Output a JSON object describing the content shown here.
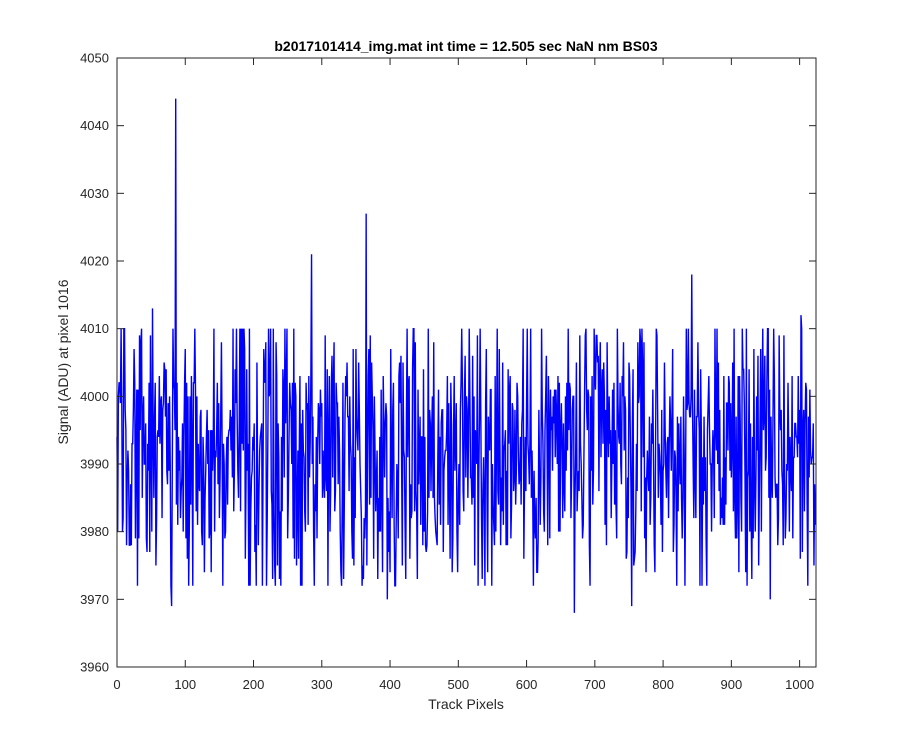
{
  "chart_data": {
    "type": "line",
    "title": "b2017101414_img.mat int time = 12.505 sec  NaN nm BS03",
    "xlabel": "Track Pixels",
    "ylabel": "Signal (ADU) at pixel 1016",
    "xlim": [
      0,
      1024
    ],
    "ylim": [
      3960,
      4050
    ],
    "xticks": [
      0,
      100,
      200,
      300,
      400,
      500,
      600,
      700,
      800,
      900,
      1000
    ],
    "yticks": [
      3960,
      3970,
      3980,
      3990,
      4000,
      4010,
      4020,
      4030,
      4040,
      4050
    ],
    "grid": false,
    "box": true,
    "line_color": "#0000ff",
    "series": [
      {
        "n_points": 1024,
        "baseline": 3992,
        "noise_range": [
          3972,
          4010
        ],
        "extremes": [
          {
            "x": 52,
            "y": 4013
          },
          {
            "x": 80,
            "y": 3969
          },
          {
            "x": 86,
            "y": 4044
          },
          {
            "x": 232,
            "y": 3972
          },
          {
            "x": 285,
            "y": 4021
          },
          {
            "x": 365,
            "y": 4027
          },
          {
            "x": 396,
            "y": 3970
          },
          {
            "x": 670,
            "y": 3968
          },
          {
            "x": 754,
            "y": 3969
          },
          {
            "x": 842,
            "y": 4018
          },
          {
            "x": 957,
            "y": 3970
          },
          {
            "x": 1002,
            "y": 4012
          },
          {
            "x": 1021,
            "y": 3975
          }
        ]
      }
    ]
  }
}
